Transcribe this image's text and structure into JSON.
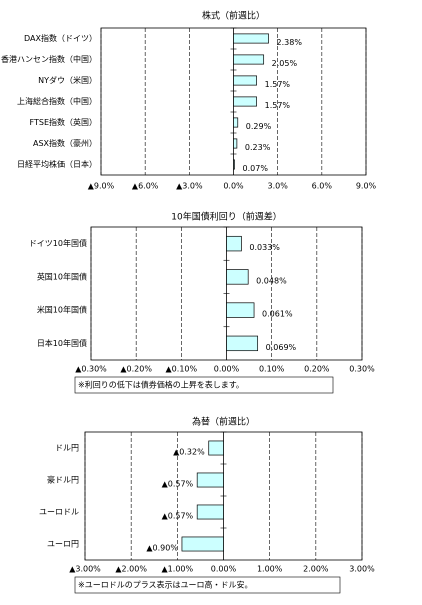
{
  "chart_data": [
    {
      "type": "hbar",
      "title": "株式（前週比）",
      "categories": [
        "DAX指数（ドイツ）",
        "香港ハンセン指数（中国）",
        "NYダウ（米国）",
        "上海総合指数（中国）",
        "FTSE指数（英国）",
        "ASX指数（豪州）",
        "日経平均株価（日本）"
      ],
      "values": [
        2.38,
        2.05,
        1.57,
        1.57,
        0.29,
        0.23,
        0.07
      ],
      "value_labels": [
        "2.38%",
        "2.05%",
        "1.57%",
        "1.57%",
        "0.29%",
        "0.23%",
        "0.07%"
      ],
      "color": "#ccffff",
      "negative_label_color": "#ff0000",
      "grid": true,
      "xlim": [
        -9,
        9
      ],
      "xticks": [
        {
          "value": -9,
          "label": "▲9.0%"
        },
        {
          "value": -6,
          "label": "▲6.0%"
        },
        {
          "value": -3,
          "label": "▲3.0%"
        },
        {
          "value": 0,
          "label": "0.0%"
        },
        {
          "value": 3,
          "label": "3.0%"
        },
        {
          "value": 6,
          "label": "6.0%"
        },
        {
          "value": 9,
          "label": "9.0%"
        }
      ]
    },
    {
      "type": "hbar",
      "title": "10年国債利回り（前週差）",
      "categories": [
        "ドイツ10年国債",
        "英国10年国債",
        "米国10年国債",
        "日本10年国債"
      ],
      "values": [
        0.033,
        0.048,
        0.061,
        0.069
      ],
      "value_labels": [
        "0.033%",
        "0.048%",
        "0.061%",
        "0.069%"
      ],
      "color": "#ccffff",
      "negative_label_color": "#ff0000",
      "grid": true,
      "xlim": [
        -0.3,
        0.3
      ],
      "xticks": [
        {
          "value": -0.3,
          "label": "▲0.30%"
        },
        {
          "value": -0.2,
          "label": "▲0.20%"
        },
        {
          "value": -0.1,
          "label": "▲0.10%"
        },
        {
          "value": 0,
          "label": "0.00%"
        },
        {
          "value": 0.1,
          "label": "0.10%"
        },
        {
          "value": 0.2,
          "label": "0.20%"
        },
        {
          "value": 0.3,
          "label": "0.30%"
        }
      ],
      "note": "※利回りの低下は債券価格の上昇を表します。"
    },
    {
      "type": "hbar",
      "title": "為替（前週比）",
      "categories": [
        "ドル円",
        "豪ドル円",
        "ユーロドル",
        "ユーロ円"
      ],
      "values": [
        -0.32,
        -0.57,
        -0.57,
        -0.9
      ],
      "value_labels": [
        "▲0.32%",
        "▲0.57%",
        "▲0.57%",
        "▲0.90%"
      ],
      "color": "#ccffff",
      "negative_label_color": "#ff0000",
      "grid": true,
      "xlim": [
        -3,
        3
      ],
      "xticks": [
        {
          "value": -3,
          "label": "▲3.00%"
        },
        {
          "value": -2,
          "label": "▲2.00%"
        },
        {
          "value": -1,
          "label": "▲1.00%"
        },
        {
          "value": 0,
          "label": "0.00%"
        },
        {
          "value": 1,
          "label": "1.00%"
        },
        {
          "value": 2,
          "label": "2.00%"
        },
        {
          "value": 3,
          "label": "3.00%"
        }
      ],
      "note": "※ユーロドルのプラス表示はユーロ高・ドル安。"
    }
  ]
}
